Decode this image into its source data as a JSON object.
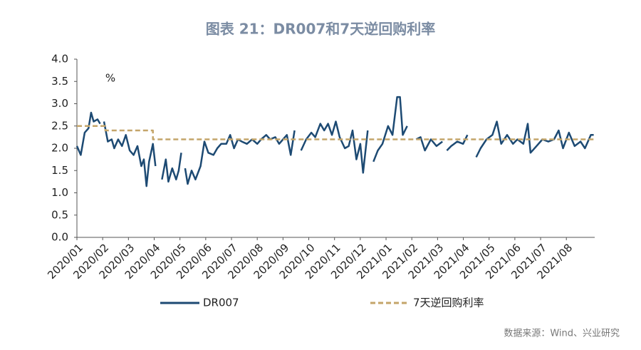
{
  "chart_data": {
    "type": "line",
    "title": "图表 21：DR007和7天逆回购利率",
    "y_unit": "%",
    "source": "数据来源：Wind、兴业研究",
    "ylim": [
      0,
      4
    ],
    "yticks": [
      {
        "value": 0,
        "label": "0.0"
      },
      {
        "value": 0.5,
        "label": "0.5"
      },
      {
        "value": 1,
        "label": "1.0"
      },
      {
        "value": 1.5,
        "label": "1.5"
      },
      {
        "value": 2,
        "label": "2.0"
      },
      {
        "value": 2.5,
        "label": "2.5"
      },
      {
        "value": 3,
        "label": "3.0"
      },
      {
        "value": 3.5,
        "label": "3.5"
      },
      {
        "value": 4,
        "label": "4.0"
      }
    ],
    "xlim": [
      0,
      20.1
    ],
    "xticks": [
      {
        "value": 0,
        "label": "2020/01"
      },
      {
        "value": 1,
        "label": "2020/02"
      },
      {
        "value": 2,
        "label": "2020/03"
      },
      {
        "value": 3,
        "label": "2020/04"
      },
      {
        "value": 4,
        "label": "2020/05"
      },
      {
        "value": 5,
        "label": "2020/06"
      },
      {
        "value": 6,
        "label": "2020/07"
      },
      {
        "value": 7,
        "label": "2020/08"
      },
      {
        "value": 8,
        "label": "2020/09"
      },
      {
        "value": 9,
        "label": "2020/10"
      },
      {
        "value": 10,
        "label": "2020/11"
      },
      {
        "value": 11,
        "label": "2020/12"
      },
      {
        "value": 12,
        "label": "2021/01"
      },
      {
        "value": 13,
        "label": "2021/02"
      },
      {
        "value": 14,
        "label": "2021/03"
      },
      {
        "value": 15,
        "label": "2021/04"
      },
      {
        "value": 16,
        "label": "2021/05"
      },
      {
        "value": 17,
        "label": "2021/06"
      },
      {
        "value": 18,
        "label": "2021/07"
      },
      {
        "value": 19,
        "label": "2021/08"
      }
    ],
    "series": [
      {
        "name": "DR007",
        "color": "#1d4a73",
        "dashed": false,
        "x": [
          0,
          0.15,
          0.3,
          0.45,
          0.55,
          0.65,
          0.8,
          0.9,
          null,
          1.05,
          1.2,
          1.35,
          1.45,
          1.6,
          1.75,
          1.9,
          2.05,
          2.2,
          2.35,
          2.5,
          2.6,
          2.7,
          2.8,
          2.95,
          3.05,
          null,
          3.3,
          3.45,
          3.55,
          3.7,
          3.85,
          3.95,
          4.05,
          null,
          4.2,
          4.3,
          4.45,
          4.6,
          4.8,
          4.95,
          5.1,
          5.3,
          5.45,
          5.6,
          5.8,
          5.95,
          6.1,
          6.25,
          6.4,
          6.6,
          6.8,
          7.0,
          7.15,
          7.35,
          7.5,
          7.7,
          7.85,
          8.0,
          8.15,
          8.3,
          8.45,
          null,
          8.7,
          8.9,
          9.1,
          9.25,
          9.45,
          9.6,
          9.75,
          9.9,
          10.05,
          10.2,
          10.4,
          10.55,
          10.7,
          10.85,
          11.0,
          11.11,
          11.29,
          null,
          11.51,
          11.68,
          11.86,
          12.08,
          12.25,
          12.43,
          12.54,
          12.65,
          12.82,
          null,
          13.17,
          13.34,
          13.51,
          13.74,
          13.96,
          14.19,
          null,
          14.36,
          14.53,
          14.76,
          14.99,
          15.16,
          null,
          15.5,
          15.67,
          15.9,
          16.13,
          16.3,
          16.47,
          16.7,
          16.93,
          17.1,
          17.33,
          17.5,
          17.61,
          17.84,
          18.07,
          18.3,
          18.52,
          18.7,
          18.87,
          19.1,
          19.32,
          19.55,
          19.72,
          19.95,
          20.06
        ],
        "values": [
          2.05,
          1.85,
          2.35,
          2.45,
          2.8,
          2.6,
          2.65,
          2.55,
          null,
          2.6,
          2.15,
          2.2,
          2.0,
          2.2,
          2.05,
          2.3,
          1.95,
          1.85,
          2.05,
          1.6,
          1.75,
          1.15,
          1.7,
          2.1,
          1.6,
          null,
          1.3,
          1.75,
          1.25,
          1.55,
          1.3,
          1.5,
          1.9,
          null,
          1.55,
          1.2,
          1.5,
          1.3,
          1.6,
          2.15,
          1.9,
          1.85,
          2.0,
          2.1,
          2.1,
          2.3,
          2.0,
          2.2,
          2.15,
          2.1,
          2.2,
          2.1,
          2.2,
          2.3,
          2.2,
          2.25,
          2.1,
          2.2,
          2.3,
          1.85,
          2.4,
          null,
          1.95,
          2.2,
          2.35,
          2.25,
          2.55,
          2.4,
          2.55,
          2.3,
          2.6,
          2.25,
          2.0,
          2.05,
          2.4,
          1.75,
          2.1,
          1.45,
          2.4,
          null,
          1.7,
          1.95,
          2.1,
          2.5,
          2.3,
          3.15,
          3.15,
          2.3,
          2.5,
          null,
          2.2,
          2.25,
          1.95,
          2.2,
          2.05,
          2.15,
          null,
          1.95,
          2.05,
          2.15,
          2.1,
          2.3,
          null,
          1.8,
          2.0,
          2.2,
          2.3,
          2.6,
          2.1,
          2.3,
          2.1,
          2.2,
          2.1,
          2.55,
          1.9,
          2.05,
          2.2,
          2.15,
          2.2,
          2.4,
          2.0,
          2.35,
          2.05,
          2.15,
          2.0,
          2.3,
          2.3
        ]
      },
      {
        "name": "7天逆回购利率",
        "color": "#c4a56a",
        "dashed": true,
        "x": [
          0,
          1.1,
          1.1,
          2.95,
          2.95,
          20.06
        ],
        "values": [
          2.5,
          2.5,
          2.4,
          2.4,
          2.2,
          2.2
        ]
      }
    ]
  }
}
